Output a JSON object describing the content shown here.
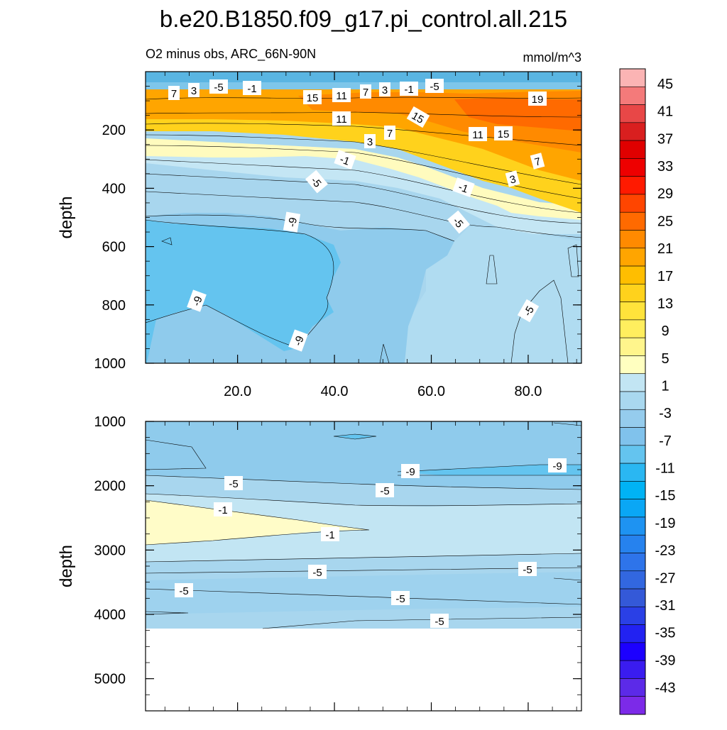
{
  "chart_data": {
    "type": "contour",
    "title": "b.e20.B1850.f09_g17.pi_control.all.215",
    "subtitle_left": "O2 minus obs, ARC_66N-90N",
    "subtitle_right": "mmol/m^3",
    "colorbar": {
      "labels": [
        "45",
        "41",
        "37",
        "33",
        "29",
        "25",
        "21",
        "17",
        "13",
        "9",
        "5",
        "1",
        "-3",
        "-7",
        "-11",
        "-15",
        "-19",
        "-23",
        "-27",
        "-31",
        "-35",
        "-39",
        "-43"
      ],
      "colors": [
        "#fbb4b4",
        "#f47a7a",
        "#e84747",
        "#d91f1f",
        "#e00000",
        "#ee0000",
        "#ff1a00",
        "#ff4500",
        "#ff6a00",
        "#ff8a00",
        "#ffa500",
        "#ffbe00",
        "#ffd21c",
        "#ffe33b",
        "#ffee5e",
        "#fff58c",
        "#ffffc0",
        "#c2e5f3",
        "#a9d8ef",
        "#95cced",
        "#80c2ec",
        "#64c4ef",
        "#2ab7f2",
        "#00b3f5",
        "#0aa7f5",
        "#1e93f2",
        "#2682ee",
        "#2e74ea",
        "#3267e0",
        "#3459d8",
        "#2a40e6",
        "#2222f2",
        "#1c00ff",
        "#3a1cf0",
        "#5c2ae8",
        "#7c2ae8"
      ]
    },
    "panels": [
      {
        "name": "upper",
        "xlabel": "",
        "ylabel": "depth",
        "xlim": [
          1,
          91
        ],
        "ylim": [
          1000,
          0
        ],
        "xticks": [
          "20.0",
          "40.0",
          "60.0",
          "80.0"
        ],
        "yticks": [
          "200",
          "400",
          "600",
          "800",
          "1000"
        ],
        "contour_labels": [
          "-5",
          "-1",
          "3",
          "7",
          "11",
          "15",
          "19",
          "-9"
        ]
      },
      {
        "name": "lower",
        "xlabel": "",
        "ylabel": "depth",
        "xlim": [
          1,
          91
        ],
        "ylim": [
          5500,
          1000
        ],
        "xticks": [],
        "yticks": [
          "1000",
          "2000",
          "3000",
          "4000",
          "5000"
        ],
        "contour_labels": [
          "-9",
          "-5",
          "-1"
        ]
      }
    ]
  }
}
